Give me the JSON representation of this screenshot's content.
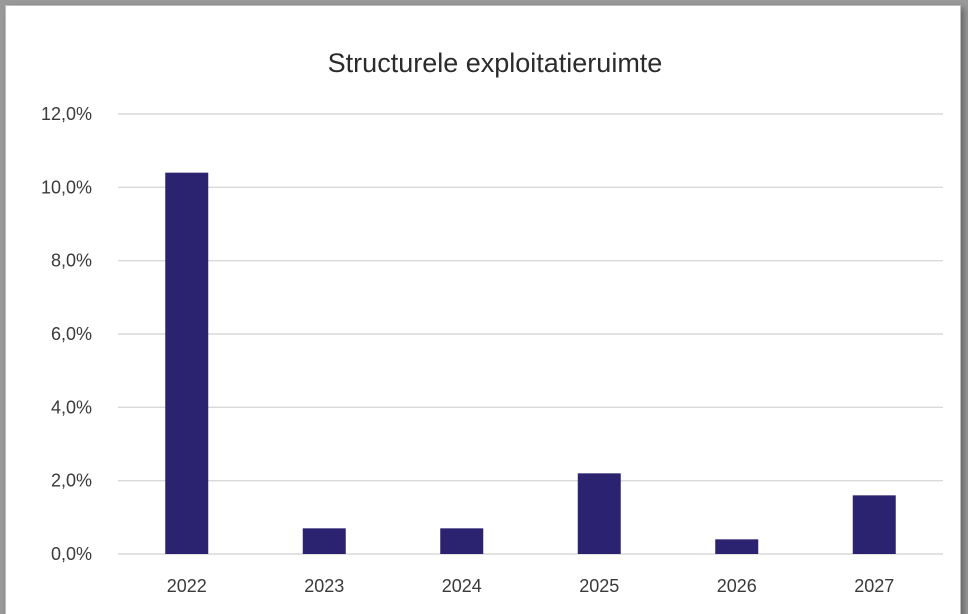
{
  "chart_data": {
    "type": "bar",
    "title": "Structurele exploitatieruimte",
    "xlabel": "",
    "ylabel": "",
    "categories": [
      "2022",
      "2023",
      "2024",
      "2025",
      "2026",
      "2027"
    ],
    "values": [
      10.4,
      0.7,
      0.7,
      2.2,
      0.4,
      1.6
    ],
    "ylim": [
      0,
      12
    ],
    "yticks": [
      0,
      2,
      4,
      6,
      8,
      10,
      12
    ],
    "ytick_labels": [
      "0,0%",
      "2,0%",
      "4,0%",
      "6,0%",
      "8,0%",
      "10,0%",
      "12,0%"
    ],
    "grid": true,
    "legend": "none",
    "bar_color": "#2b2270",
    "gridline_color": "#d9d9d9"
  }
}
